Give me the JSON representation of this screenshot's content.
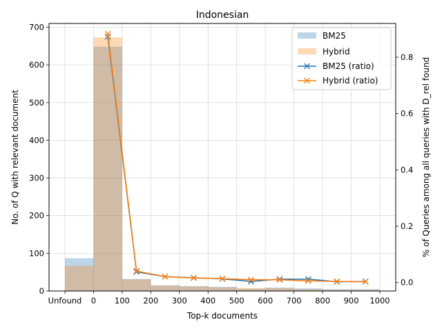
{
  "chart_data": {
    "type": "bar",
    "title": "Indonesian",
    "xlabel": "Top-k documents",
    "ylabel": "No. of Q with relevant document",
    "ylabel_right": "% of Queries among all queries with D_rel found",
    "x_tick_labels": [
      "Unfound",
      "0",
      "100",
      "200",
      "300",
      "400",
      "500",
      "600",
      "700",
      "800",
      "900",
      "1000"
    ],
    "xlim": [
      -100,
      1000
    ],
    "ylim": [
      0,
      710
    ],
    "y_ticks": [
      0,
      100,
      200,
      300,
      400,
      500,
      600,
      700
    ],
    "ylim_right": [
      -0.03,
      0.92
    ],
    "y_ticks_right": [
      0.0,
      0.2,
      0.4,
      0.6,
      0.8
    ],
    "bins": [
      -100,
      0,
      100,
      200,
      300,
      400,
      500,
      600,
      700,
      800,
      900,
      1000
    ],
    "bar_series": [
      {
        "name": "BM25",
        "color": "#1f77b4",
        "opacity": 0.3,
        "values": [
          87,
          648,
          32,
          15,
          13,
          11,
          6,
          9,
          7,
          5,
          5
        ]
      },
      {
        "name": "Hybrid",
        "color": "#ff7f0e",
        "opacity": 0.3,
        "values": [
          67,
          673,
          31,
          15,
          12,
          10,
          8,
          8,
          5,
          3,
          3
        ]
      }
    ],
    "line_x": [
      50,
      150,
      250,
      350,
      450,
      550,
      650,
      750,
      850,
      950
    ],
    "line_series": [
      {
        "name": "BM25 (ratio)",
        "color": "#1f77b4",
        "values": [
          0.873,
          0.038,
          0.021,
          0.017,
          0.013,
          0.004,
          0.012,
          0.012,
          0.003,
          0.004
        ]
      },
      {
        "name": "Hybrid (ratio)",
        "color": "#ff7f0e",
        "values": [
          0.883,
          0.041,
          0.021,
          0.016,
          0.014,
          0.01,
          0.01,
          0.006,
          0.004,
          0.003
        ]
      }
    ],
    "grid": true,
    "legend_position": "top-right"
  }
}
